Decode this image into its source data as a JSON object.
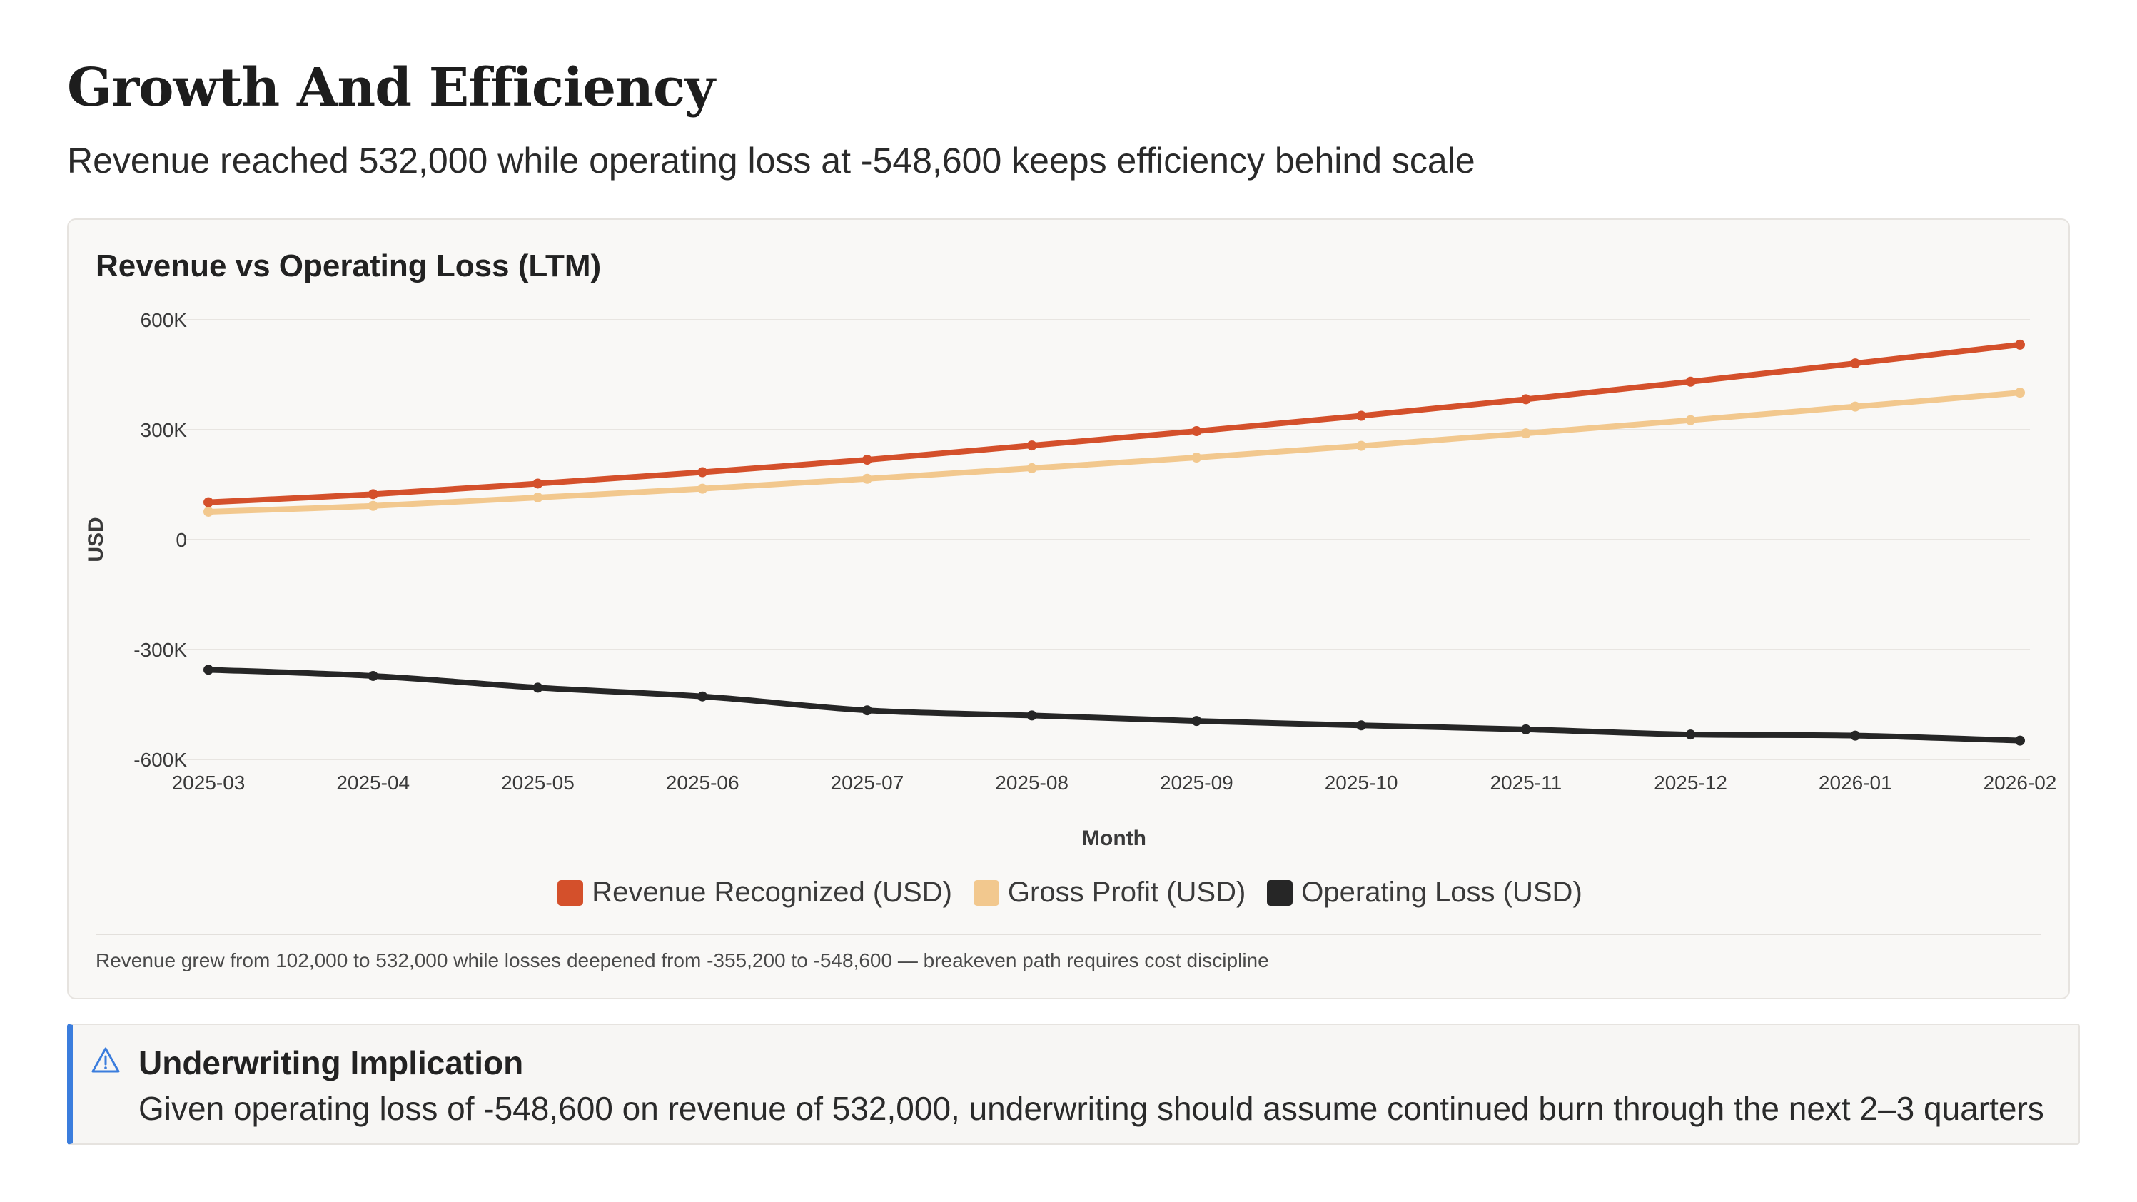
{
  "page": {
    "title": "Growth And Efficiency",
    "subtitle": "Revenue reached 532,000 while operating loss at -548,600 keeps efficiency behind scale"
  },
  "chart_data": {
    "type": "line",
    "title": "Revenue vs Operating Loss (LTM)",
    "xlabel": "Month",
    "ylabel": "USD",
    "x": [
      "2025-03",
      "2025-04",
      "2025-05",
      "2025-06",
      "2025-07",
      "2025-08",
      "2025-09",
      "2025-10",
      "2025-11",
      "2025-12",
      "2026-01",
      "2026-02"
    ],
    "ylim": [
      -600000,
      600000
    ],
    "yticks": [
      600000,
      300000,
      0,
      -300000,
      -600000
    ],
    "ytick_labels": [
      "600K",
      "300K",
      "0",
      "-300K",
      "-600K"
    ],
    "grid": true,
    "legend_position": "bottom",
    "series": [
      {
        "name": "Revenue Recognized (USD)",
        "color": "#d4502b",
        "values": [
          102000,
          124000,
          153000,
          184000,
          218000,
          257000,
          296000,
          338000,
          383000,
          431000,
          481000,
          532000
        ]
      },
      {
        "name": "Gross Profit (USD)",
        "color": "#f2c88e",
        "values": [
          76000,
          92000,
          115000,
          139000,
          166000,
          195000,
          224000,
          256000,
          290000,
          326000,
          363000,
          401000
        ]
      },
      {
        "name": "Operating Loss (USD)",
        "color": "#262626",
        "values": [
          -355200,
          -372000,
          -404000,
          -428000,
          -466000,
          -480000,
          -495000,
          -507000,
          -518000,
          -532000,
          -535000,
          -548600
        ]
      }
    ],
    "footnote": "Revenue grew from 102,000 to 532,000 while losses deepened from -355,200 to -548,600 — breakeven path requires cost discipline"
  },
  "callout": {
    "icon": "warning-triangle-icon",
    "accent_color": "#3b7ddd",
    "title": "Underwriting Implication",
    "body": "Given operating loss of -548,600 on revenue of 532,000, underwriting should assume continued burn through the next 2–3 quarters"
  }
}
